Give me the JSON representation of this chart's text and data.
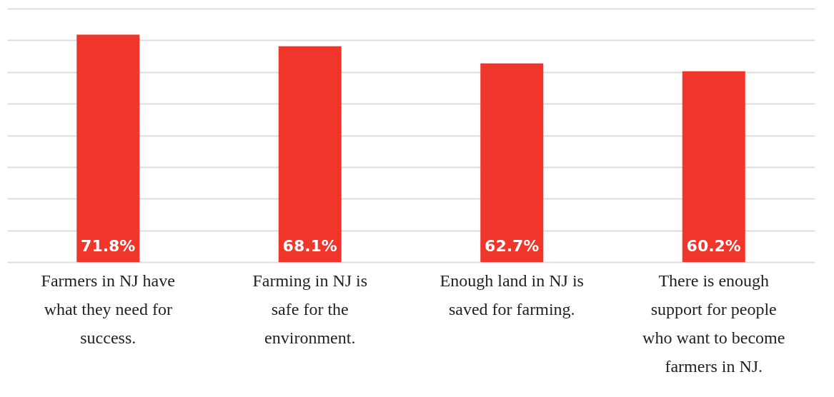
{
  "chart_data": {
    "type": "bar",
    "categories": [
      "Farmers in NJ have what they need for success.",
      "Farming in NJ is safe for the environment.",
      "Enough land in NJ is saved for farming.",
      "There is enough support for people who want to become farmers in NJ."
    ],
    "values": [
      71.8,
      68.1,
      62.7,
      60.2
    ],
    "value_labels": [
      "71.8%",
      "68.1%",
      "62.7%",
      "60.2%"
    ],
    "color": "#f0352b",
    "ylim": [
      0,
      80
    ],
    "yticks": [
      {
        "value": 0,
        "label": null
      },
      {
        "value": 10,
        "label": null
      },
      {
        "value": 20,
        "label": null
      },
      {
        "value": 30,
        "label": null
      },
      {
        "value": 40,
        "label": null
      },
      {
        "value": 50,
        "label": null
      },
      {
        "value": 60,
        "label": null
      },
      {
        "value": 70,
        "label": null
      },
      {
        "value": 80,
        "label": null
      }
    ],
    "grid": "y",
    "tick_labels": "x"
  }
}
